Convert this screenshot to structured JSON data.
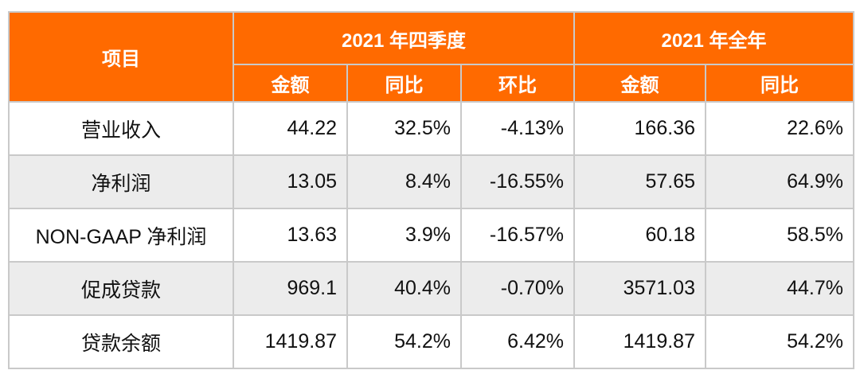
{
  "header": {
    "item": "项目",
    "groups": [
      "2021 年四季度",
      "2021 年全年"
    ],
    "sub": [
      "金额",
      "同比",
      "环比",
      "金额",
      "同比"
    ]
  },
  "rows": [
    {
      "name": "营业收入",
      "values": [
        "44.22",
        "32.5%",
        "-4.13%",
        "166.36",
        "22.6%"
      ]
    },
    {
      "name": "净利润",
      "values": [
        "13.05",
        "8.4%",
        "-16.55%",
        "57.65",
        "64.9%"
      ]
    },
    {
      "name": "NON-GAAP 净利润",
      "values": [
        "13.63",
        "3.9%",
        "-16.57%",
        "60.18",
        "58.5%"
      ]
    },
    {
      "name": "促成贷款",
      "values": [
        "969.1",
        "40.4%",
        "-0.70%",
        "3571.03",
        "44.7%"
      ]
    },
    {
      "name": "贷款余额",
      "values": [
        "1419.87",
        "54.2%",
        "6.42%",
        "1419.87",
        "54.2%"
      ]
    }
  ],
  "colors": {
    "header": "#ff6a00",
    "alt_row": "#ececec",
    "border": "#c9c9c9"
  }
}
